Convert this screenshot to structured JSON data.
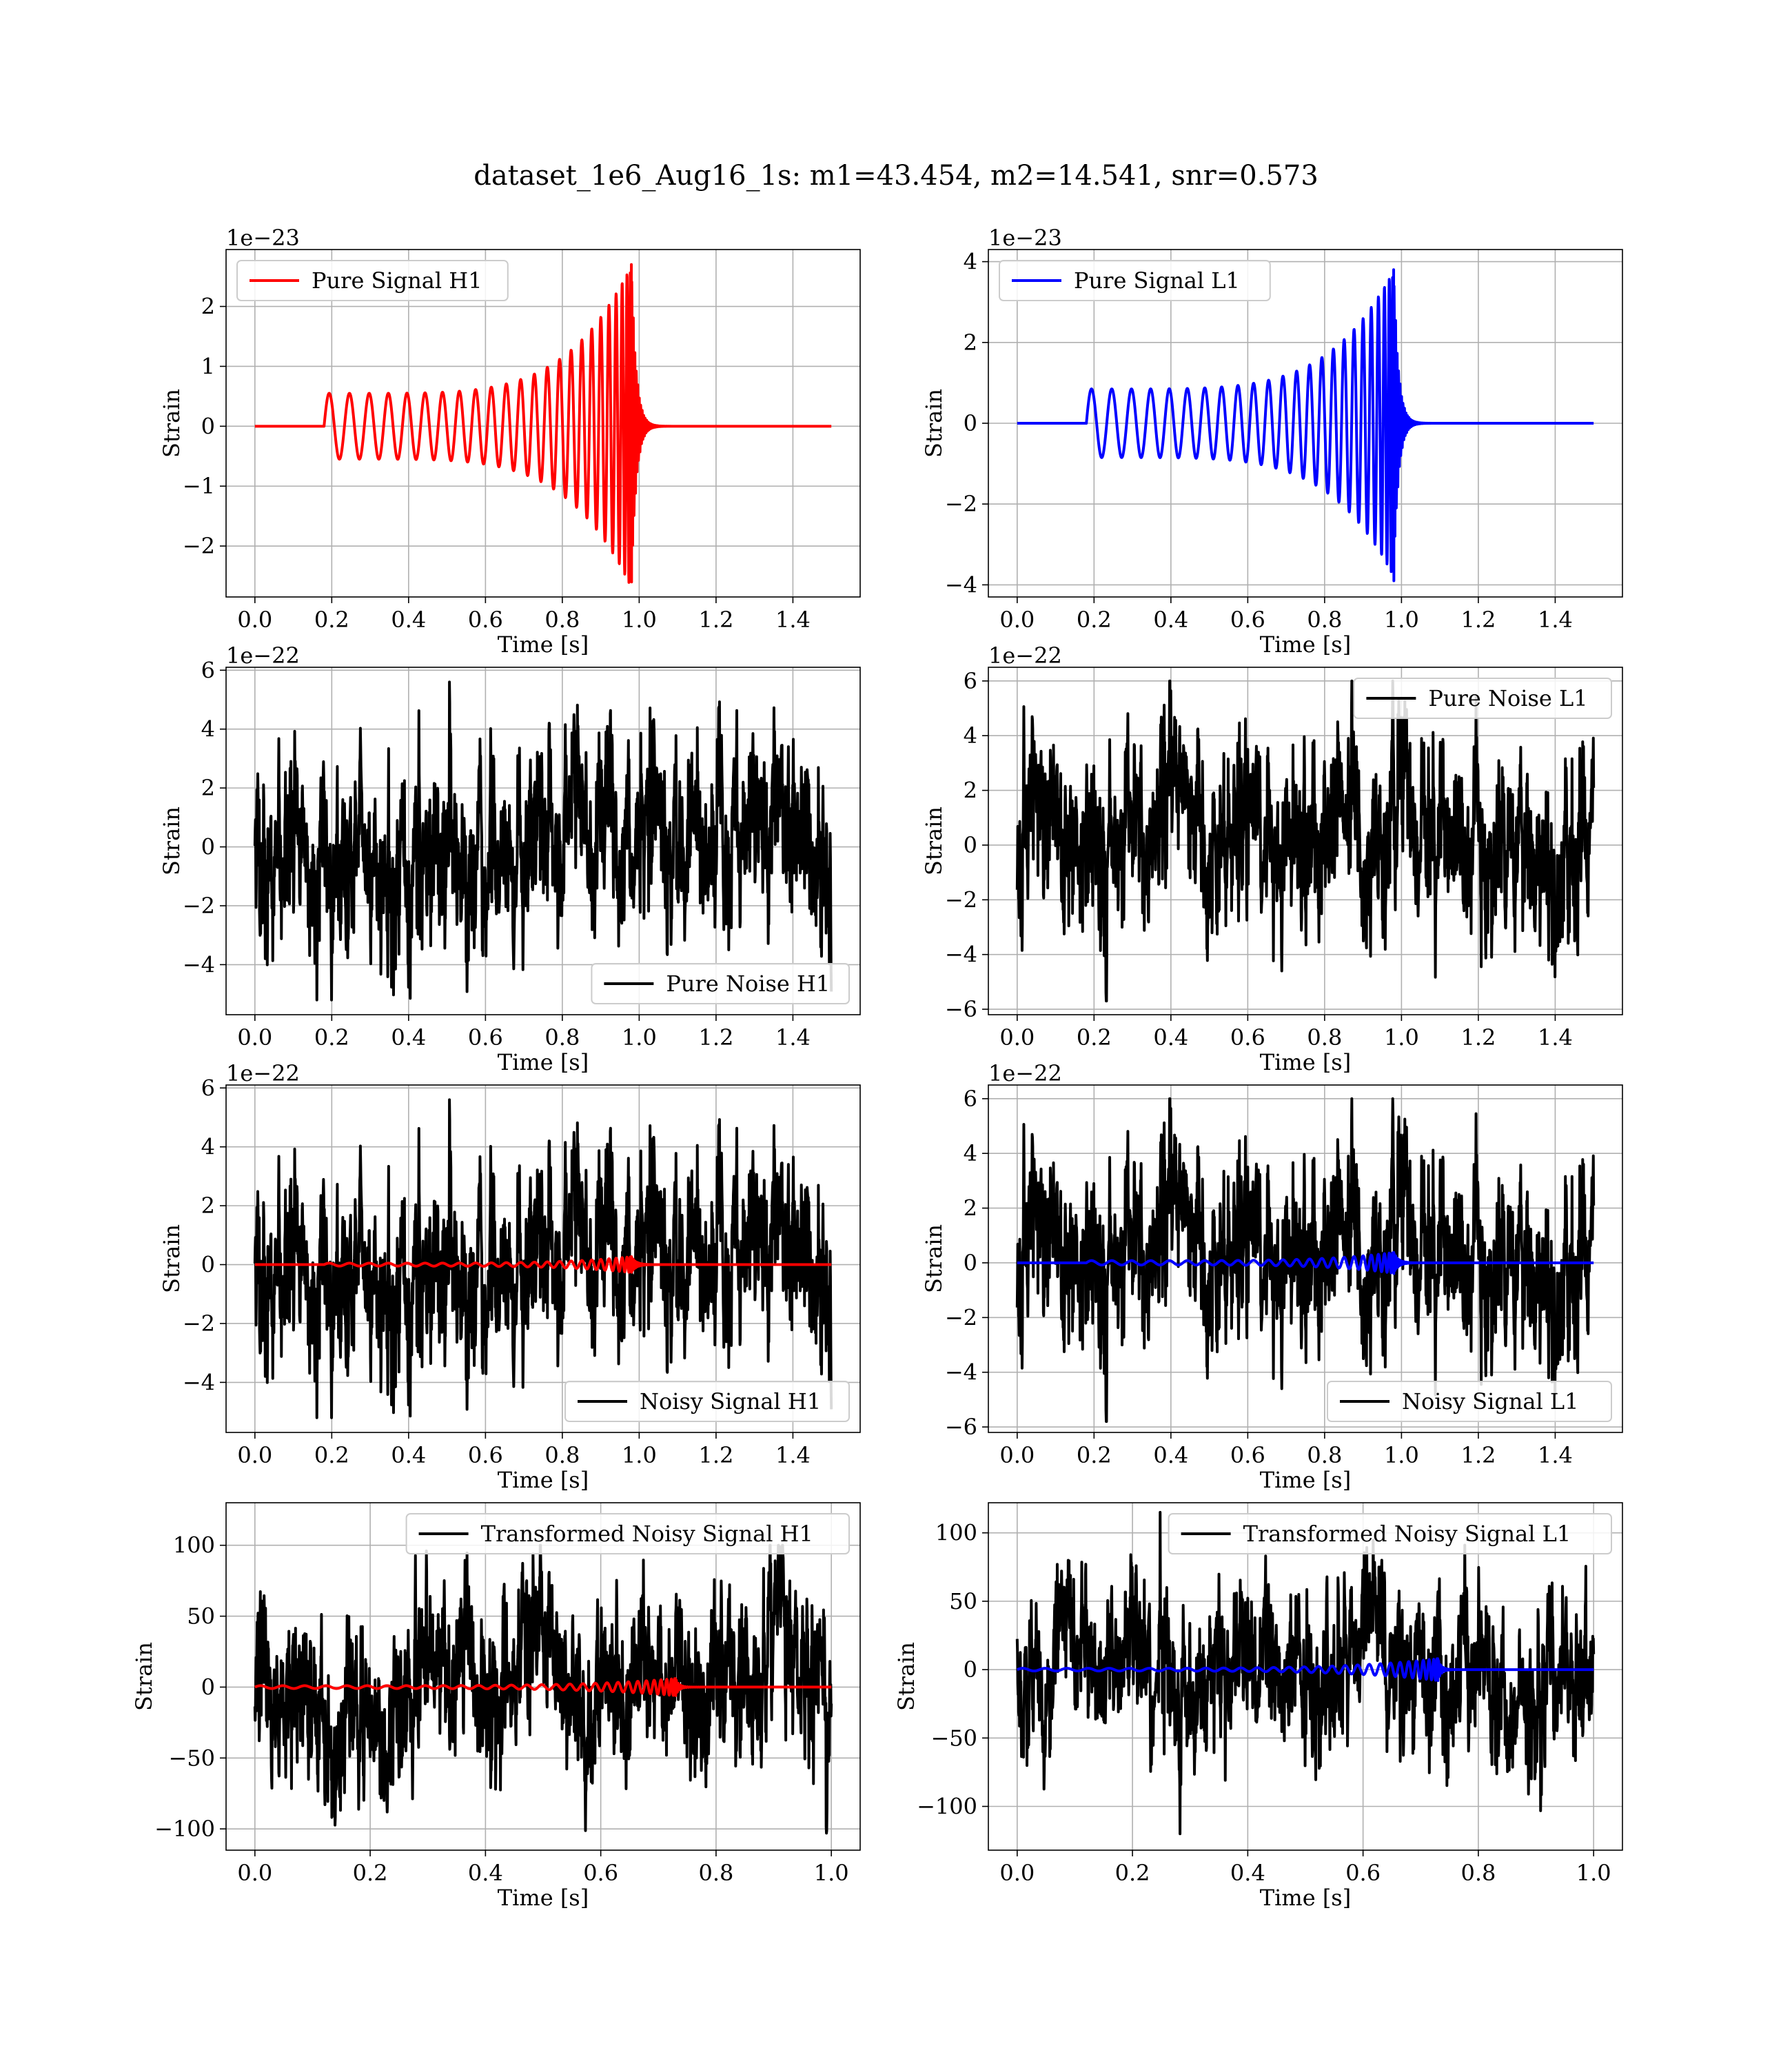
{
  "title": "dataset_1e6_Aug16_1s: m1=43.454, m2=14.541, snr=0.573",
  "colors": {
    "h1": "#ff0000",
    "l1": "#0000ff",
    "noise": "#000000",
    "grid": "#b0b0b0",
    "legend_frame": "#cccccc"
  },
  "chart_data": [
    {
      "type": "line",
      "panel": "pure-signal-h1",
      "detector": "H1",
      "xlabel": "Time [s]",
      "ylabel": "Strain",
      "offset_text": "1e−23",
      "xlim": [
        -0.075,
        1.575
      ],
      "ylim": [
        -2.85,
        2.95
      ],
      "xticks": [
        "0.0",
        "0.2",
        "0.4",
        "0.6",
        "0.8",
        "1.0",
        "1.2",
        "1.4"
      ],
      "yticks": [
        "−2",
        "−1",
        "0",
        "1",
        "2"
      ],
      "grid": true,
      "legend_loc": "upper left",
      "series": [
        {
          "name": "Pure Signal H1",
          "color": "#ff0000",
          "kind": "chirp",
          "x_range": [
            0.0,
            1.5
          ],
          "chirp": {
            "onset": 0.18,
            "merger": 0.98,
            "start_amp": 0.55,
            "peak_amp": 2.7,
            "min_value": -2.6,
            "cycles": 24,
            "ringdown_tau": 0.012
          }
        }
      ]
    },
    {
      "type": "line",
      "panel": "pure-signal-l1",
      "detector": "L1",
      "xlabel": "Time [s]",
      "ylabel": "Strain",
      "offset_text": "1e−23",
      "xlim": [
        -0.075,
        1.575
      ],
      "ylim": [
        -4.3,
        4.3
      ],
      "xticks": [
        "0.0",
        "0.2",
        "0.4",
        "0.6",
        "0.8",
        "1.0",
        "1.2",
        "1.4"
      ],
      "yticks": [
        "−4",
        "−2",
        "0",
        "2",
        "4"
      ],
      "grid": true,
      "legend_loc": "upper left",
      "series": [
        {
          "name": "Pure Signal L1",
          "color": "#0000ff",
          "kind": "chirp",
          "x_range": [
            0.0,
            1.5
          ],
          "chirp": {
            "onset": 0.18,
            "merger": 0.98,
            "start_amp": 0.85,
            "peak_amp": 3.8,
            "min_value": -3.9,
            "cycles": 24,
            "ringdown_tau": 0.012
          }
        }
      ]
    },
    {
      "type": "line",
      "panel": "pure-noise-h1",
      "detector": "H1",
      "xlabel": "Time [s]",
      "ylabel": "Strain",
      "offset_text": "1e−22",
      "xlim": [
        -0.075,
        1.575
      ],
      "ylim": [
        -5.7,
        6.1
      ],
      "xticks": [
        "0.0",
        "0.2",
        "0.4",
        "0.6",
        "0.8",
        "1.0",
        "1.2",
        "1.4"
      ],
      "yticks": [
        "−4",
        "−2",
        "0",
        "2",
        "4",
        "6"
      ],
      "grid": true,
      "legend_loc": "lower right",
      "series": [
        {
          "name": "Pure Noise H1",
          "color": "#000000",
          "kind": "noise",
          "x_range": [
            0.0,
            1.5
          ],
          "noise": {
            "sd": 1.5,
            "max": 5.6,
            "min": -5.2,
            "seed": 11
          }
        }
      ]
    },
    {
      "type": "line",
      "panel": "pure-noise-l1",
      "detector": "L1",
      "xlabel": "Time [s]",
      "ylabel": "Strain",
      "offset_text": "1e−22",
      "xlim": [
        -0.075,
        1.575
      ],
      "ylim": [
        -6.2,
        6.5
      ],
      "xticks": [
        "0.0",
        "0.2",
        "0.4",
        "0.6",
        "0.8",
        "1.0",
        "1.2",
        "1.4"
      ],
      "yticks": [
        "−6",
        "−4",
        "−2",
        "0",
        "2",
        "4",
        "6"
      ],
      "grid": true,
      "legend_loc": "upper right",
      "series": [
        {
          "name": "Pure Noise L1",
          "color": "#000000",
          "kind": "noise",
          "x_range": [
            0.0,
            1.5
          ],
          "noise": {
            "sd": 1.6,
            "max": 6.0,
            "min": -5.7,
            "seed": 23
          }
        }
      ]
    },
    {
      "type": "line",
      "panel": "noisy-signal-h1",
      "detector": "H1",
      "xlabel": "Time [s]",
      "ylabel": "Strain",
      "offset_text": "1e−22",
      "xlim": [
        -0.075,
        1.575
      ],
      "ylim": [
        -5.7,
        6.1
      ],
      "xticks": [
        "0.0",
        "0.2",
        "0.4",
        "0.6",
        "0.8",
        "1.0",
        "1.2",
        "1.4"
      ],
      "yticks": [
        "−4",
        "−2",
        "0",
        "2",
        "4",
        "6"
      ],
      "grid": true,
      "legend_loc": "lower right",
      "series": [
        {
          "name": "Noisy Signal H1",
          "color": "#000000",
          "kind": "noise",
          "x_range": [
            0.0,
            1.5
          ],
          "noise": {
            "sd": 1.5,
            "max": 5.6,
            "min": -5.2,
            "seed": 11
          }
        },
        {
          "name": "",
          "color": "#ff0000",
          "kind": "chirp",
          "x_range": [
            0.0,
            1.5
          ],
          "chirp": {
            "onset": 0.18,
            "merger": 0.98,
            "start_amp": 0.05,
            "peak_amp": 0.27,
            "min_value": -0.26,
            "cycles": 24,
            "ringdown_tau": 0.012
          }
        }
      ]
    },
    {
      "type": "line",
      "panel": "noisy-signal-l1",
      "detector": "L1",
      "xlabel": "Time [s]",
      "ylabel": "Strain",
      "offset_text": "1e−22",
      "xlim": [
        -0.075,
        1.575
      ],
      "ylim": [
        -6.2,
        6.5
      ],
      "xticks": [
        "0.0",
        "0.2",
        "0.4",
        "0.6",
        "0.8",
        "1.0",
        "1.2",
        "1.4"
      ],
      "yticks": [
        "−6",
        "−4",
        "−2",
        "0",
        "2",
        "4",
        "6"
      ],
      "grid": true,
      "legend_loc": "lower right",
      "series": [
        {
          "name": "Noisy Signal L1",
          "color": "#000000",
          "kind": "noise",
          "x_range": [
            0.0,
            1.5
          ],
          "noise": {
            "sd": 1.6,
            "max": 6.0,
            "min": -5.8,
            "seed": 23
          }
        },
        {
          "name": "",
          "color": "#0000ff",
          "kind": "chirp",
          "x_range": [
            0.0,
            1.5
          ],
          "chirp": {
            "onset": 0.18,
            "merger": 0.98,
            "start_amp": 0.08,
            "peak_amp": 0.38,
            "min_value": -0.39,
            "cycles": 24,
            "ringdown_tau": 0.012
          }
        }
      ]
    },
    {
      "type": "line",
      "panel": "transformed-noisy-signal-h1",
      "detector": "H1",
      "xlabel": "Time [s]",
      "ylabel": "Strain",
      "offset_text": "",
      "xlim": [
        -0.05,
        1.05
      ],
      "ylim": [
        -115,
        130
      ],
      "xticks": [
        "0.0",
        "0.2",
        "0.4",
        "0.6",
        "0.8",
        "1.0"
      ],
      "yticks": [
        "−100",
        "−50",
        "0",
        "50",
        "100"
      ],
      "grid": true,
      "legend_loc": "upper right",
      "series": [
        {
          "name": "Transformed Noisy Signal H1",
          "color": "#000000",
          "kind": "noise",
          "x_range": [
            0.0,
            1.0
          ],
          "noise": {
            "sd": 28,
            "max": 100,
            "min": -103,
            "seed": 37
          }
        },
        {
          "name": "",
          "color": "#ff0000",
          "kind": "chirp",
          "x_range": [
            0.0,
            1.0
          ],
          "chirp": {
            "onset": 0.0,
            "merger": 0.73,
            "start_amp": 1.0,
            "peak_amp": 6.0,
            "min_value": -6.0,
            "cycles": 30,
            "ringdown_tau": 0.006
          }
        }
      ]
    },
    {
      "type": "line",
      "panel": "transformed-noisy-signal-l1",
      "detector": "L1",
      "xlabel": "Time [s]",
      "ylabel": "Strain",
      "offset_text": "",
      "xlim": [
        -0.05,
        1.05
      ],
      "ylim": [
        -132,
        122
      ],
      "xticks": [
        "0.0",
        "0.2",
        "0.4",
        "0.6",
        "0.8",
        "1.0"
      ],
      "yticks": [
        "−100",
        "−50",
        "0",
        "50",
        "100"
      ],
      "grid": true,
      "legend_loc": "upper right",
      "series": [
        {
          "name": "Transformed Noisy Signal L1",
          "color": "#000000",
          "kind": "noise",
          "x_range": [
            0.0,
            1.0
          ],
          "noise": {
            "sd": 28,
            "max": 115,
            "min": -120,
            "seed": 53
          }
        },
        {
          "name": "",
          "color": "#0000ff",
          "kind": "chirp",
          "x_range": [
            0.0,
            1.0
          ],
          "chirp": {
            "onset": 0.0,
            "merger": 0.73,
            "start_amp": 1.0,
            "peak_amp": 8.0,
            "min_value": -8.0,
            "cycles": 30,
            "ringdown_tau": 0.006
          }
        }
      ]
    }
  ]
}
